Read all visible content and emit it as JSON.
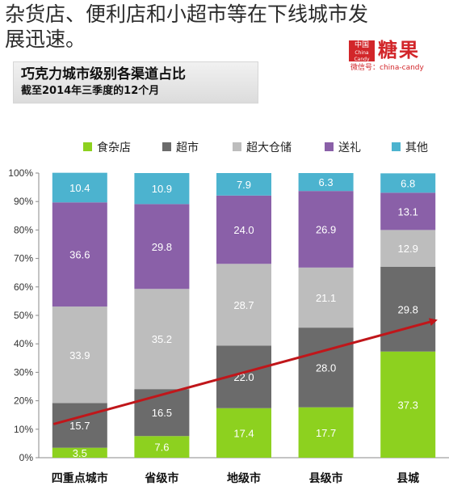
{
  "headline": "杂货店、便利店和小超市等在下线城市发展迅速。",
  "brand": {
    "mark_top": "中国",
    "mark_sub": "China Candy",
    "name": "糖果",
    "wechat": "微信号：china-candy"
  },
  "chart_data": {
    "type": "bar",
    "stacked": true,
    "title": "巧克力城市级别各渠道占比",
    "subtitle": "截至2014年三季度的12个月",
    "categories": [
      "四重点城市",
      "省级市",
      "地级市",
      "县级市",
      "县城"
    ],
    "series": [
      {
        "name": "食杂店",
        "color": "#8dd11f",
        "values": [
          3.5,
          7.6,
          17.4,
          17.7,
          37.3
        ]
      },
      {
        "name": "超市",
        "color": "#6b6b6b",
        "values": [
          15.7,
          16.5,
          22.0,
          28.0,
          29.8
        ]
      },
      {
        "name": "超大仓储",
        "color": "#bdbdbd",
        "values": [
          33.9,
          35.2,
          28.7,
          21.1,
          12.9
        ]
      },
      {
        "name": "送礼",
        "color": "#8a60a8",
        "values": [
          36.6,
          29.8,
          24.0,
          26.9,
          13.1
        ]
      },
      {
        "name": "其他",
        "color": "#4cb3cf",
        "values": [
          10.4,
          10.9,
          7.9,
          6.3,
          6.8
        ]
      }
    ],
    "ylim": [
      0,
      100
    ],
    "yticks": [
      "0%",
      "10%",
      "20%",
      "30%",
      "40%",
      "50%",
      "60%",
      "70%",
      "80%",
      "90%",
      "100%"
    ],
    "legend_position": "top",
    "grid": false,
    "trend_arrow_color": "#c0161a"
  }
}
